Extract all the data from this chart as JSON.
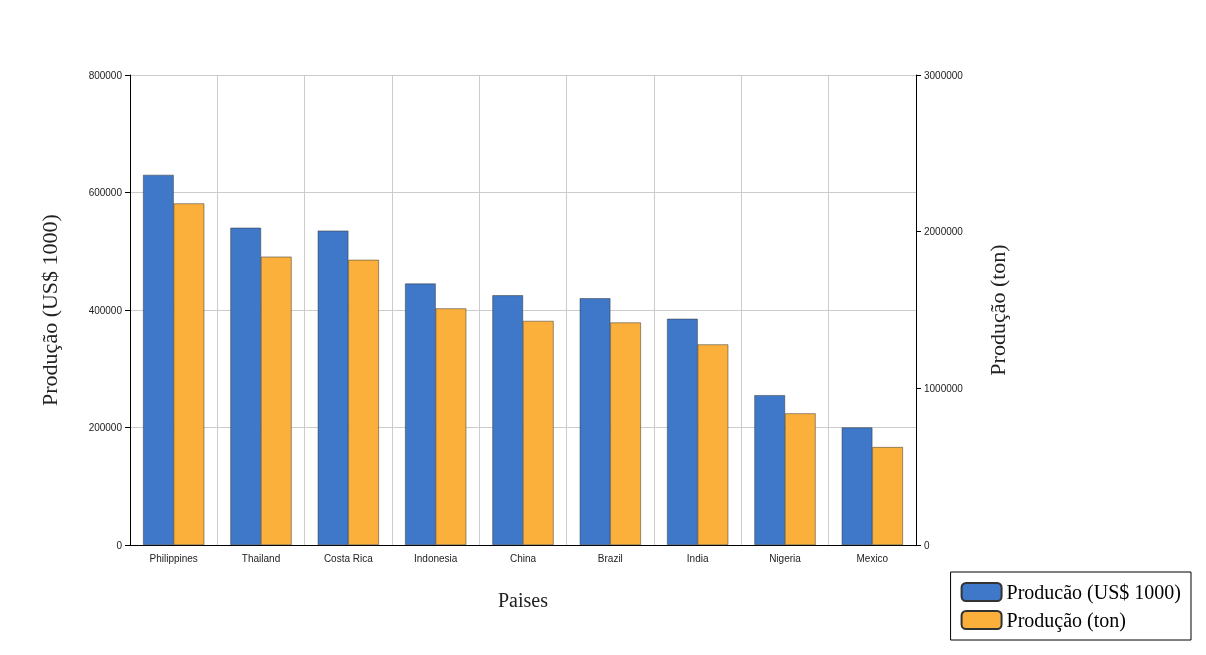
{
  "chart_data": {
    "type": "bar",
    "xlabel": "Paises",
    "ylabel": "Produção (US$ 1000)",
    "y2label": "Produção (ton)",
    "categories": [
      "Philippines",
      "Thailand",
      "Costa Rica",
      "Indonesia",
      "China",
      "Brazil",
      "India",
      "Nigeria",
      "Mexico"
    ],
    "series": [
      {
        "name": "Producão (US$ 1000)",
        "color": "#3f78c8",
        "values": [
          630000,
          540000,
          535000,
          445000,
          425000,
          420000,
          385000,
          255000,
          200000
        ]
      },
      {
        "name": "Produção (ton)",
        "color": "#fbb03b",
        "axis": "y2",
        "values": [
          2180000,
          1840000,
          1820000,
          1510000,
          1430000,
          1420000,
          1280000,
          840000,
          625000
        ]
      }
    ],
    "ylim": [
      0,
      800000
    ],
    "yticks": [
      0,
      200000,
      400000,
      600000,
      800000
    ],
    "y2lim": [
      0,
      3000000
    ],
    "y2ticks": [
      0,
      1000000,
      2000000,
      3000000
    ],
    "grid": true,
    "legend": "bottom right"
  }
}
